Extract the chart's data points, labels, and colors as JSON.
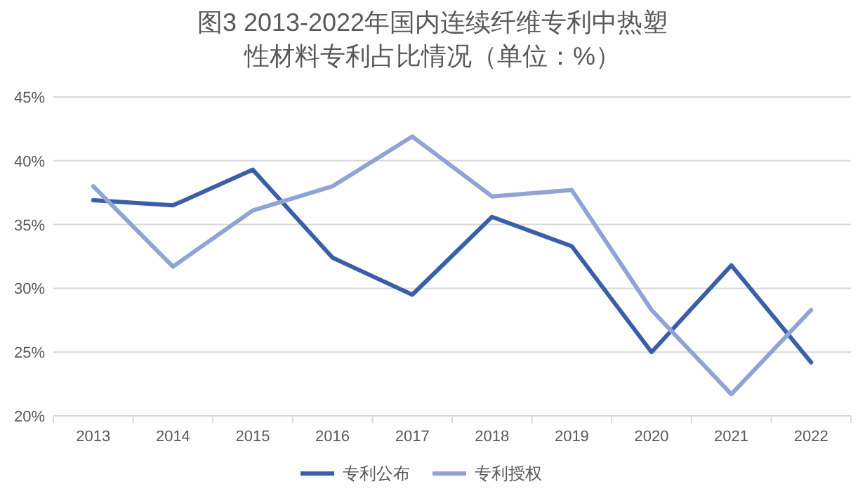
{
  "chart_data": {
    "type": "line",
    "title": "图3 2013-2022年国内连续纤维专利中热塑性材料专利占比情况（单位：%）",
    "categories": [
      "2013",
      "2014",
      "2015",
      "2016",
      "2017",
      "2018",
      "2019",
      "2020",
      "2021",
      "2022"
    ],
    "series": [
      {
        "name": "专利公布",
        "color": "#3a5fa8",
        "values": [
          36.9,
          36.5,
          39.3,
          32.4,
          29.5,
          35.6,
          33.3,
          25.0,
          31.8,
          24.2
        ]
      },
      {
        "name": "专利授权",
        "color": "#8fa3d4",
        "values": [
          38.0,
          31.7,
          36.1,
          38.0,
          41.9,
          37.2,
          37.7,
          28.3,
          21.7,
          28.3
        ]
      }
    ],
    "ylim": [
      20,
      45
    ],
    "yticks": [
      {
        "value": 20,
        "label": "20%"
      },
      {
        "value": 25,
        "label": "25%"
      },
      {
        "value": 30,
        "label": "30%"
      },
      {
        "value": 35,
        "label": "35%"
      },
      {
        "value": 40,
        "label": "40%"
      },
      {
        "value": 45,
        "label": "45%"
      }
    ],
    "grid": "y",
    "legend": "bottom",
    "marker": "none",
    "line_style": "solid"
  }
}
